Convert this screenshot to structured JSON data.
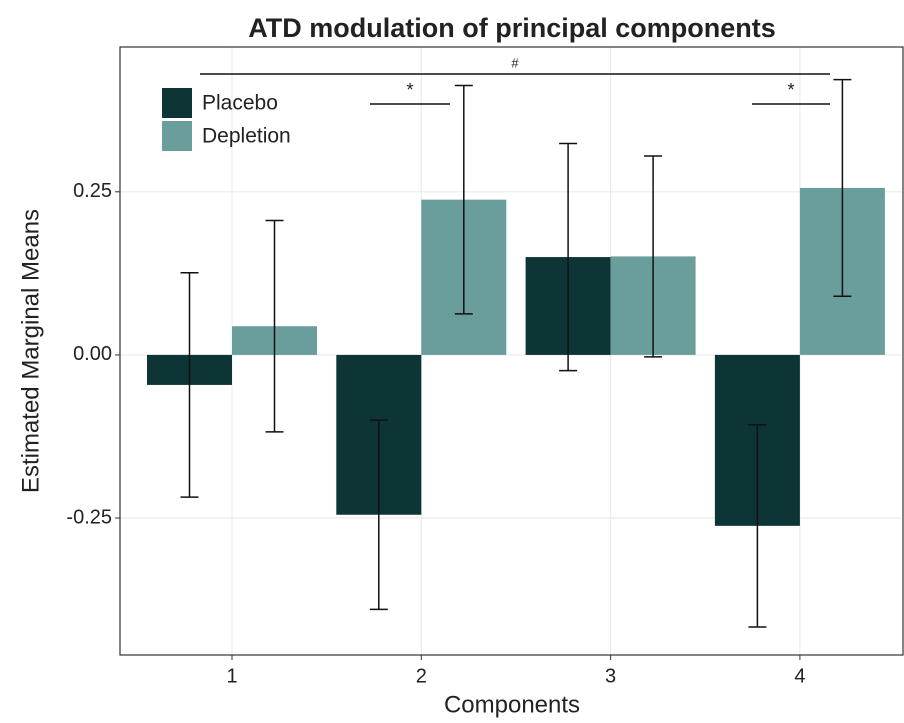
{
  "chart_data": {
    "type": "bar",
    "title": "ATD modulation of principal components",
    "x_label": "Components",
    "y_label": "Estimated Marginal Means",
    "categories": [
      "1",
      "2",
      "3",
      "4"
    ],
    "series": [
      {
        "name": "Placebo",
        "color": "#0d3535",
        "values": [
          -0.046,
          -0.245,
          0.15,
          -0.262
        ],
        "errors": [
          0.172,
          0.145,
          0.174,
          0.155
        ]
      },
      {
        "name": "Depletion",
        "color": "#6a9e9c",
        "values": [
          0.044,
          0.238,
          0.151,
          0.256
        ],
        "errors": [
          0.162,
          0.175,
          0.154,
          0.166
        ]
      }
    ],
    "ylim": [
      -0.46,
      0.472
    ],
    "yticks": [
      -0.25,
      {
        "value": 0,
        "label": "0.00"
      },
      0.25
    ],
    "grid": true,
    "legend_position": "top-left",
    "annotations": [
      {
        "text": "#"
      },
      {
        "text": "*"
      },
      {
        "text": "*"
      }
    ]
  }
}
